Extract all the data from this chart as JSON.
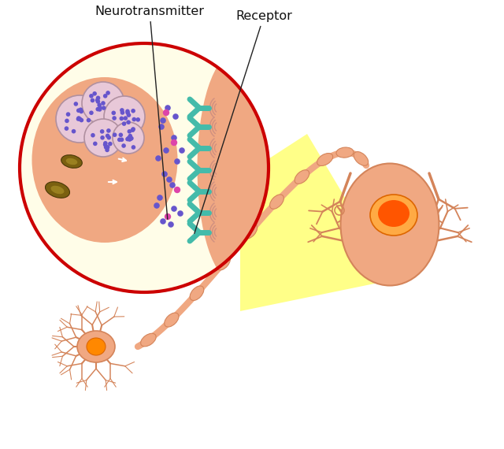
{
  "bg_color": "#ffffff",
  "neuron_color": "#f0a882",
  "neuron_dark": "#d4845a",
  "nucleus_color": "#ff5500",
  "nucleus_glow": "#ff8800",
  "dendrite_color": "#d4845a",
  "receptor_color": "#44bbaa",
  "nt_dot_blue": "#6655cc",
  "nt_dot_pink": "#dd44aa",
  "circle_bg": "#fffde8",
  "circle_border": "#cc0000",
  "postsynaptic_color": "#f0a882",
  "yellow_wedge": "#ffff88",
  "mito_color": "#7a6010",
  "mito_inner": "#9a8020",
  "vesicle_bg": "#e8c8d8",
  "vesicle_border": "#b090a0",
  "label_neurotransmitter": "Neurotransmitter",
  "label_receptor": "Receptor"
}
